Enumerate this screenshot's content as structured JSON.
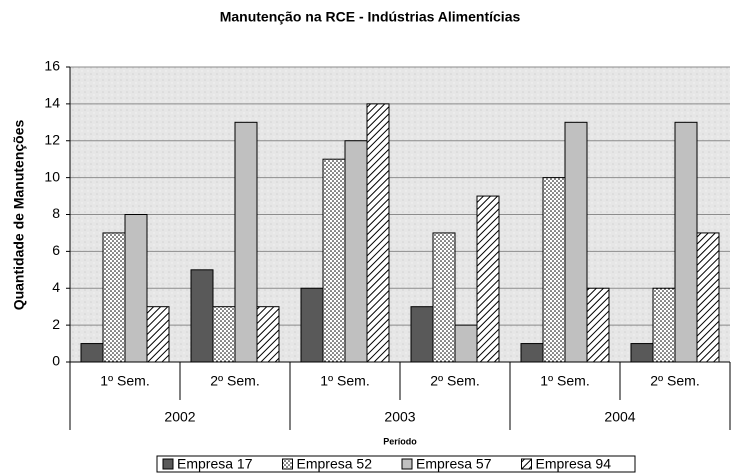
{
  "chart_data": {
    "type": "bar",
    "title": "Manutenção na RCE - Indústrias Alimentícias",
    "y_label": "Quantidade de Manutenções",
    "x_label": "Período",
    "categories": [
      "1º Sem.",
      "2º Sem.",
      "1º Sem.",
      "2º Sem.",
      "1º Sem.",
      "2º Sem."
    ],
    "groups": [
      {
        "label": "2002",
        "size": 2
      },
      {
        "label": "2003",
        "size": 2
      },
      {
        "label": "2004",
        "size": 2
      }
    ],
    "series": [
      {
        "name": "Empresa 17",
        "color": "#595959",
        "pattern": "solid",
        "values": [
          1,
          5,
          4,
          3,
          1,
          1
        ]
      },
      {
        "name": "Empresa 52",
        "color": "#000000",
        "pattern": "dots",
        "values": [
          7,
          3,
          11,
          7,
          10,
          4
        ]
      },
      {
        "name": "Empresa 57",
        "color": "#c0c0c0",
        "pattern": "solid",
        "values": [
          8,
          13,
          12,
          2,
          13,
          13
        ]
      },
      {
        "name": "Empresa 94",
        "color": "#000000",
        "pattern": "hatch",
        "values": [
          3,
          3,
          14,
          9,
          4,
          7
        ]
      }
    ],
    "ylim": [
      0,
      16
    ],
    "yticks": [
      0,
      2,
      4,
      6,
      8,
      10,
      12,
      14,
      16
    ],
    "grid": true,
    "legend": "bottom"
  }
}
